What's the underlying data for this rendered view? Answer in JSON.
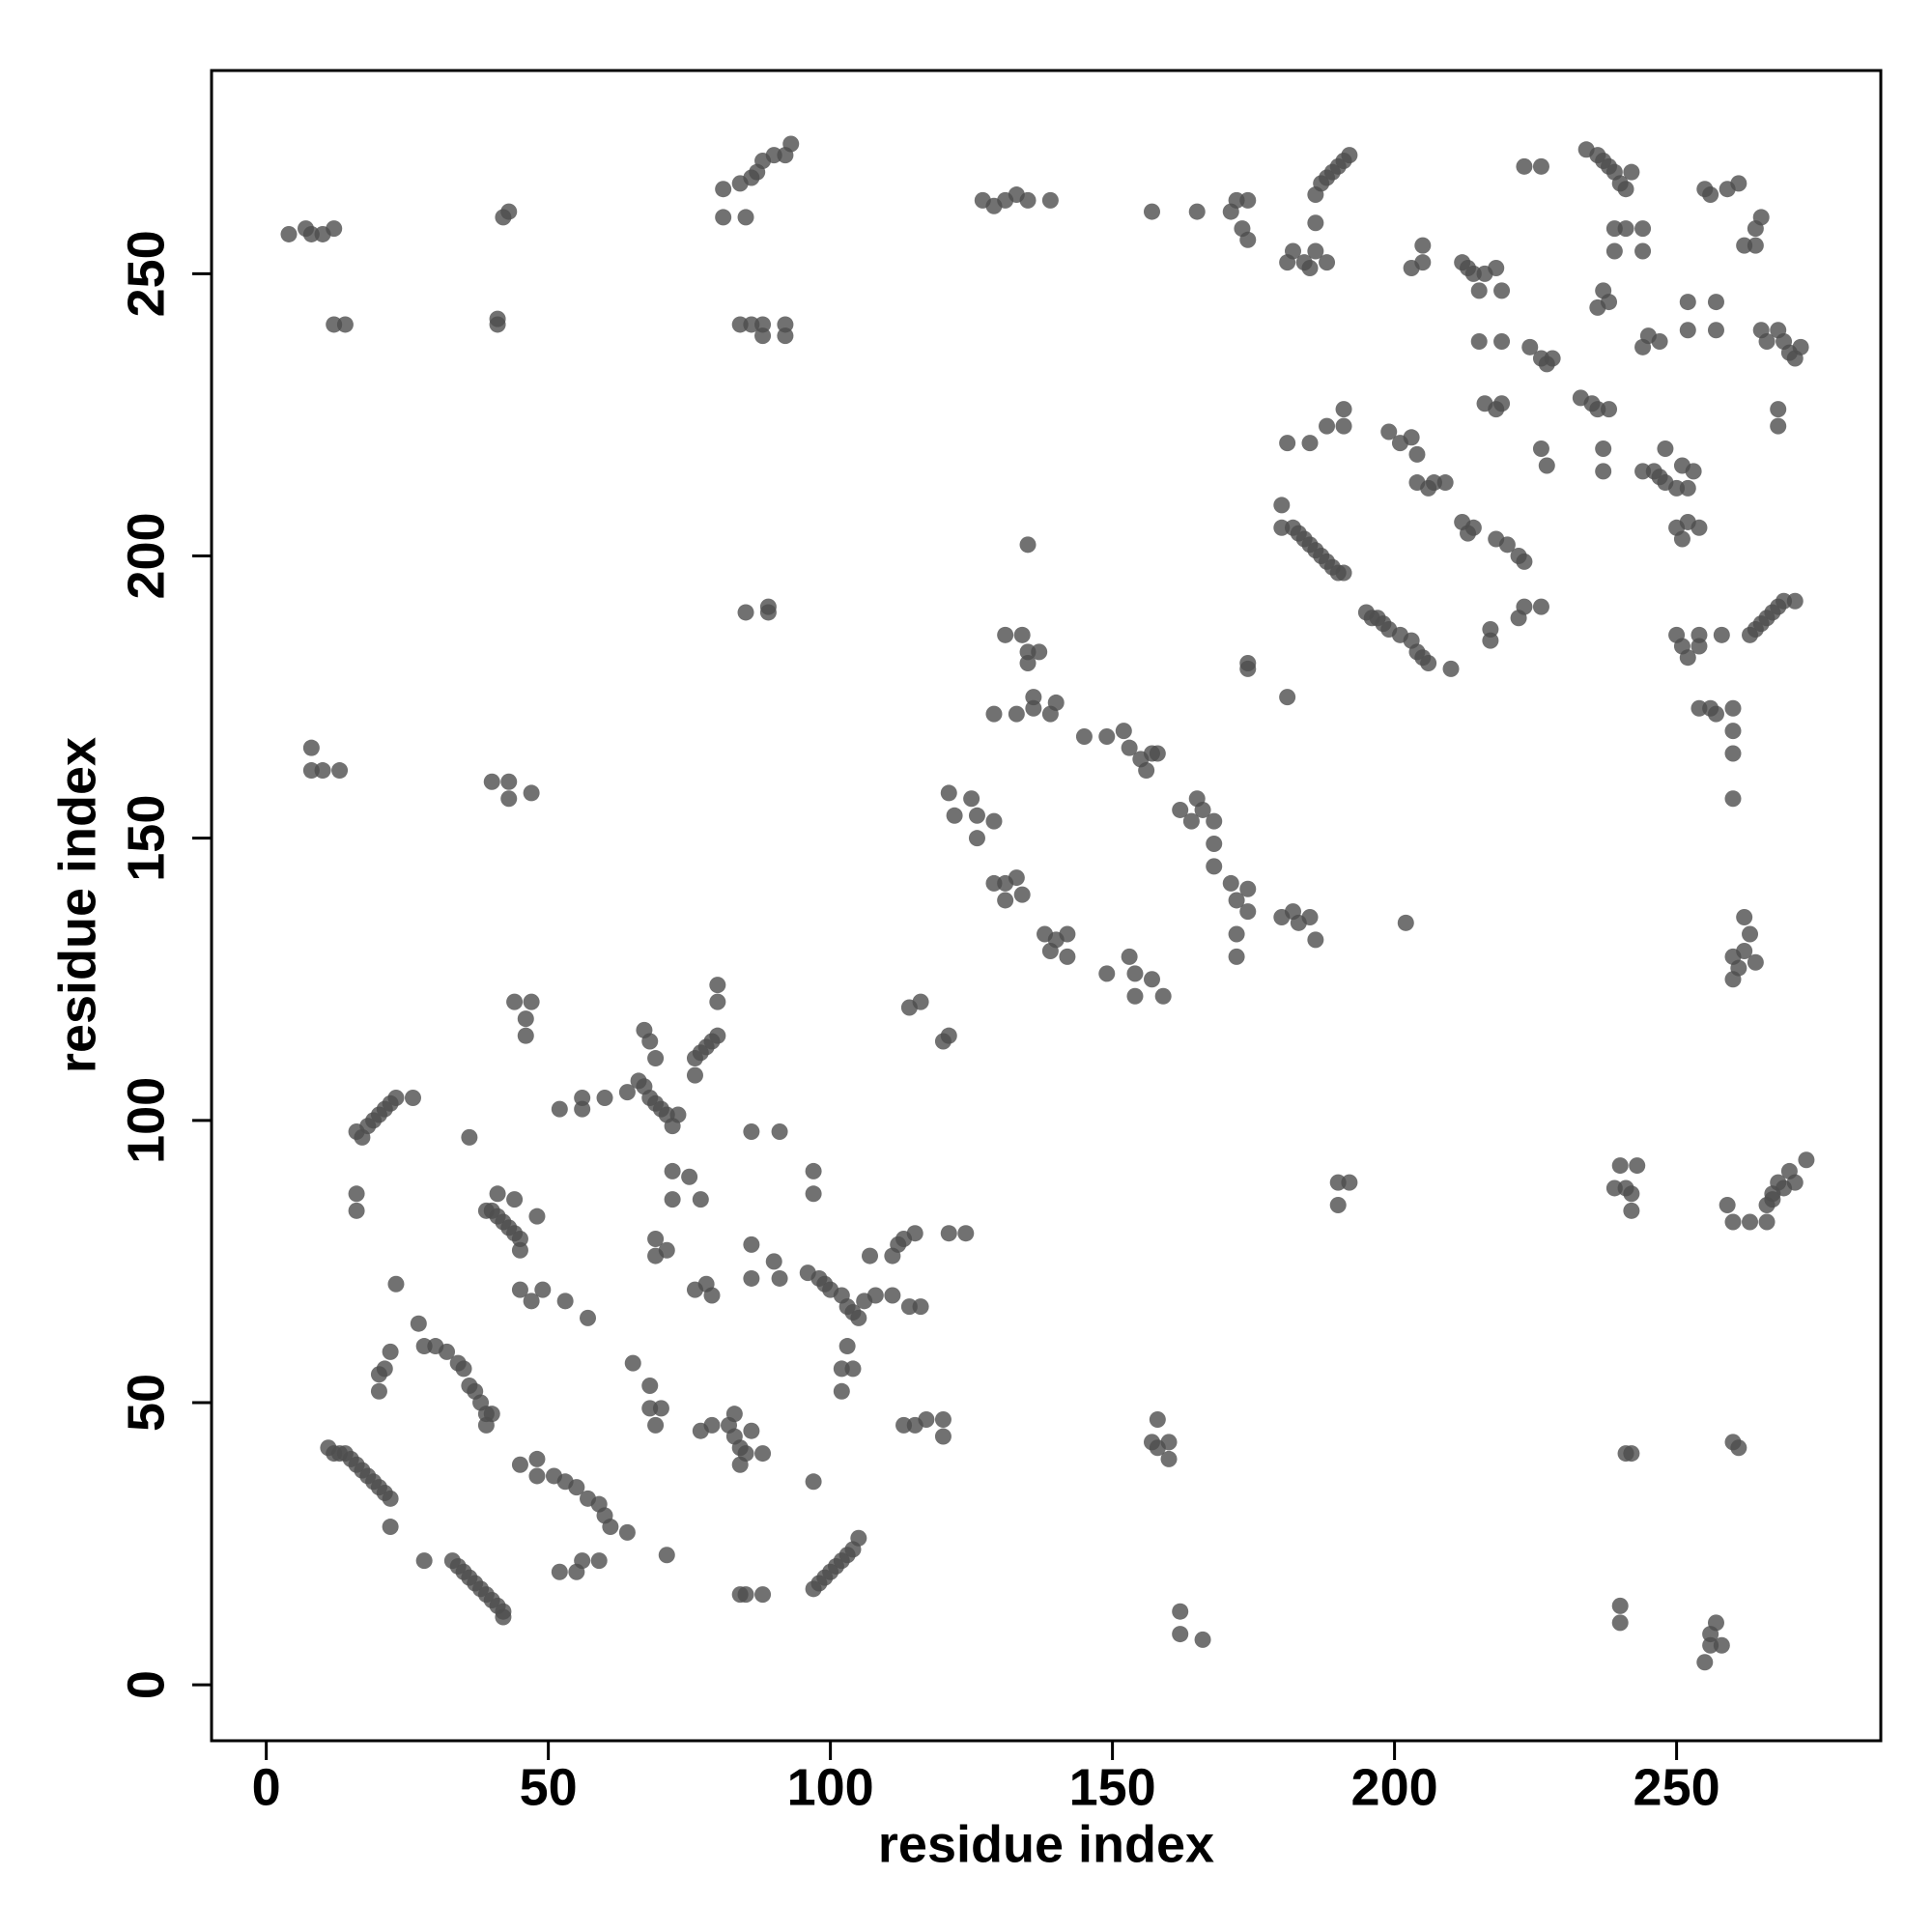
{
  "chart_data": {
    "type": "scatter",
    "xlabel": "residue index",
    "ylabel": "residue index",
    "xlim": [
      -9.7,
      286.2
    ],
    "ylim": [
      -9.9,
      286
    ],
    "xticks": [
      0,
      50,
      100,
      150,
      200,
      250
    ],
    "yticks": [
      0,
      50,
      100,
      150,
      200,
      250
    ],
    "color": "#4d4d4d",
    "alpha": 0.8,
    "grid": false,
    "x": [
      11,
      12,
      13,
      14,
      15,
      16,
      17,
      18,
      19,
      20,
      21,
      22,
      22,
      28,
      33,
      34,
      35,
      36,
      37,
      38,
      39,
      40,
      41,
      42,
      42,
      27,
      28,
      30,
      32,
      34,
      35,
      36,
      37,
      38,
      39,
      40,
      39,
      20,
      21,
      20,
      22,
      23,
      45,
      48,
      48,
      51,
      53,
      55,
      57,
      59,
      60,
      61,
      64,
      52,
      55,
      56,
      59,
      71,
      97,
      98,
      99,
      100,
      101,
      102,
      103,
      104,
      105,
      84,
      85,
      88,
      82,
      83,
      84,
      85,
      86,
      88,
      77,
      79,
      83,
      84,
      68,
      68,
      70,
      69,
      65,
      97,
      96,
      98,
      99,
      100,
      102,
      103,
      104,
      105,
      106,
      108,
      103,
      102,
      104,
      102,
      113,
      115,
      117,
      120,
      120,
      107,
      111,
      112,
      113,
      115,
      121,
      124,
      114,
      116,
      111,
      16,
      17,
      18,
      19,
      20,
      21,
      22,
      23,
      26,
      16,
      16,
      36,
      39,
      40,
      41,
      42,
      43,
      44,
      45,
      41,
      44,
      48,
      45,
      45,
      47,
      49,
      53,
      57,
      44,
      47,
      46,
      46,
      52,
      56,
      56,
      60,
      64,
      66,
      67,
      68,
      69,
      70,
      71,
      72,
      73,
      67,
      68,
      69,
      72,
      75,
      72,
      77,
      69,
      71,
      69,
      76,
      77,
      78,
      79,
      80,
      80,
      80,
      76,
      86,
      91,
      97,
      97,
      76,
      78,
      79,
      86,
      86,
      90,
      91,
      158,
      157,
      158,
      160,
      160,
      162,
      162,
      166,
      114,
      116,
      120,
      121,
      121,
      122,
      125,
      126,
      126,
      129,
      129,
      131,
      131,
      134,
      133,
      138,
      139,
      140,
      142,
      142,
      149,
      153,
      154,
      154,
      157,
      159,
      129,
      133,
      136,
      136,
      139,
      140,
      145,
      149,
      131,
      134,
      135,
      137,
      135,
      135,
      152,
      153,
      155,
      156,
      157,
      158,
      162,
      164,
      165,
      166,
      168,
      168,
      168,
      171,
      172,
      174,
      174,
      172,
      172,
      174,
      174,
      181,
      182,
      183,
      185,
      186,
      180,
      190,
      192,
      190,
      202,
      127,
      129,
      131,
      133,
      135,
      139,
      157,
      165,
      171,
      172,
      174,
      174,
      173,
      81,
      81,
      84,
      86,
      87,
      88,
      90,
      92,
      93,
      85,
      84,
      86,
      88,
      88,
      92,
      92,
      85,
      89,
      89,
      42,
      43,
      41,
      41,
      4,
      7,
      8,
      10,
      12,
      12,
      14,
      8,
      8,
      10,
      13,
      40,
      43,
      43,
      47,
      180,
      180,
      182,
      183,
      184,
      185,
      186,
      187,
      188,
      189,
      190,
      191,
      181,
      182,
      184,
      185,
      186,
      186,
      188,
      186,
      187,
      188,
      189,
      190,
      191,
      192,
      181,
      185,
      188,
      191,
      191,
      195,
      196,
      197,
      198,
      199,
      201,
      203,
      204,
      205,
      206,
      210,
      199,
      201,
      203,
      204,
      204,
      206,
      207,
      209,
      203,
      205,
      205,
      212,
      213,
      214,
      215,
      216,
      218,
      219,
      215,
      219,
      212,
      213,
      214,
      218,
      220,
      222,
      223,
      216,
      218,
      219,
      217,
      217,
      222,
      223,
      226,
      223,
      226,
      224,
      226,
      227,
      228,
      226,
      227,
      234,
      236,
      237,
      238,
      239,
      240,
      241,
      242,
      237,
      238,
      236,
      239,
      241,
      239,
      244,
      244,
      233,
      235,
      236,
      238,
      237,
      237,
      244,
      245,
      247,
      244,
      246,
      247,
      248,
      250,
      251,
      252,
      253,
      248,
      250,
      251,
      252,
      254,
      250,
      251,
      252,
      254,
      254,
      258,
      252,
      252,
      257,
      257,
      254,
      256,
      257,
      260,
      260,
      260,
      260,
      255,
      256,
      259,
      261,
      262,
      264,
      264,
      265,
      263,
      264,
      265,
      266,
      267,
      268,
      269,
      271,
      265,
      266,
      268,
      269,
      270,
      271,
      272,
      268,
      268,
      260,
      261,
      262,
      263,
      262,
      264,
      260,
      240,
      239,
      241,
      242,
      242,
      243,
      259,
      260,
      263,
      266,
      266,
      267,
      268,
      269,
      270,
      271,
      273,
      267,
      241,
      242,
      260,
      261,
      240,
      240,
      255,
      256,
      256,
      257,
      258
    ],
    "values": [
      42,
      41,
      41,
      41,
      40,
      39,
      38,
      37,
      36,
      35,
      34,
      33,
      28,
      22,
      22,
      21,
      20,
      19,
      18,
      17,
      16,
      15,
      14,
      13,
      12,
      64,
      60,
      60,
      59,
      57,
      56,
      53,
      52,
      50,
      48,
      48,
      46,
      55,
      56,
      52,
      59,
      71,
      39,
      40,
      37,
      37,
      36,
      35,
      33,
      32,
      30,
      28,
      27,
      20,
      20,
      22,
      22,
      23,
      17,
      18,
      19,
      20,
      21,
      22,
      23,
      24,
      26,
      16,
      16,
      16,
      46,
      44,
      42,
      41,
      45,
      41,
      45,
      46,
      48,
      39,
      53,
      49,
      49,
      46,
      57,
      36,
      73,
      72,
      71,
      70,
      69,
      67,
      66,
      65,
      68,
      69,
      60,
      56,
      56,
      52,
      46,
      46,
      47,
      47,
      44,
      76,
      76,
      78,
      79,
      80,
      80,
      80,
      67,
      67,
      69,
      98,
      97,
      99,
      100,
      101,
      102,
      103,
      104,
      104,
      87,
      84,
      97,
      84,
      84,
      83,
      82,
      81,
      80,
      79,
      87,
      86,
      83,
      77,
      70,
      68,
      70,
      68,
      65,
      121,
      121,
      118,
      115,
      102,
      104,
      102,
      104,
      105,
      107,
      106,
      104,
      103,
      102,
      101,
      99,
      101,
      116,
      114,
      111,
      91,
      90,
      86,
      86,
      79,
      77,
      76,
      111,
      112,
      113,
      114,
      115,
      121,
      124,
      108,
      98,
      98,
      91,
      87,
      70,
      71,
      69,
      78,
      72,
      75,
      72,
      47,
      43,
      42,
      40,
      43,
      13,
      9,
      8,
      120,
      121,
      114,
      115,
      158,
      154,
      157,
      150,
      154,
      153,
      142,
      139,
      142,
      140,
      143,
      133,
      130,
      132,
      133,
      129,
      126,
      129,
      126,
      122,
      125,
      122,
      172,
      172,
      173,
      175,
      172,
      174,
      168,
      168,
      186,
      186,
      183,
      183,
      181,
      202,
      169,
      166,
      164,
      162,
      165,
      165,
      155,
      153,
      157,
      155,
      153,
      149,
      145,
      142,
      139,
      137,
      141,
      133,
      129,
      180,
      181,
      175,
      137,
      135,
      136,
      132,
      136,
      89,
      89,
      85,
      135,
      263,
      262,
      263,
      264,
      263,
      263,
      261,
      261,
      261,
      263,
      263,
      256,
      258,
      260,
      265,
      266,
      267,
      268,
      270,
      271,
      271,
      273,
      260,
      241,
      241,
      241,
      239,
      241,
      239,
      190,
      191,
      190,
      260,
      261,
      242,
      241,
      257,
      258,
      257,
      257,
      258,
      241,
      241,
      166,
      162,
      162,
      162,
      160,
      160,
      157,
      158,
      205,
      209,
      205,
      204,
      203,
      202,
      201,
      200,
      199,
      198,
      197,
      197,
      252,
      254,
      252,
      251,
      254,
      259,
      252,
      264,
      266,
      267,
      268,
      269,
      270,
      271,
      220,
      220,
      223,
      223,
      226,
      190,
      189,
      189,
      188,
      187,
      186,
      185,
      183,
      182,
      181,
      180,
      222,
      220,
      221,
      218,
      213,
      212,
      213,
      213,
      251,
      252,
      255,
      252,
      251,
      250,
      247,
      250,
      251,
      247,
      238,
      238,
      206,
      204,
      205,
      203,
      202,
      200,
      199,
      227,
      226,
      227,
      187,
      185,
      189,
      191,
      191,
      269,
      269,
      237,
      235,
      234,
      235,
      219,
      216,
      272,
      271,
      270,
      269,
      268,
      266,
      265,
      268,
      247,
      245,
      244,
      258,
      258,
      254,
      258,
      254,
      228,
      227,
      226,
      226,
      219,
      215,
      237,
      239,
      238,
      215,
      215,
      214,
      213,
      212,
      216,
      212,
      215,
      219,
      205,
      203,
      206,
      205,
      186,
      184,
      182,
      184,
      186,
      186,
      245,
      240,
      245,
      240,
      173,
      173,
      172,
      173,
      169,
      165,
      157,
      265,
      264,
      265,
      266,
      255,
      255,
      258,
      260,
      186,
      187,
      188,
      189,
      190,
      191,
      192,
      192,
      240,
      238,
      240,
      238,
      236,
      235,
      237,
      226,
      223,
      129,
      127,
      130,
      133,
      136,
      128,
      125,
      92,
      88,
      88,
      87,
      84,
      92,
      85,
      82,
      82,
      82,
      85,
      87,
      89,
      88,
      91,
      89,
      93,
      86,
      41,
      41,
      43,
      42,
      14,
      11,
      4,
      7,
      9,
      11,
      7
    ]
  }
}
